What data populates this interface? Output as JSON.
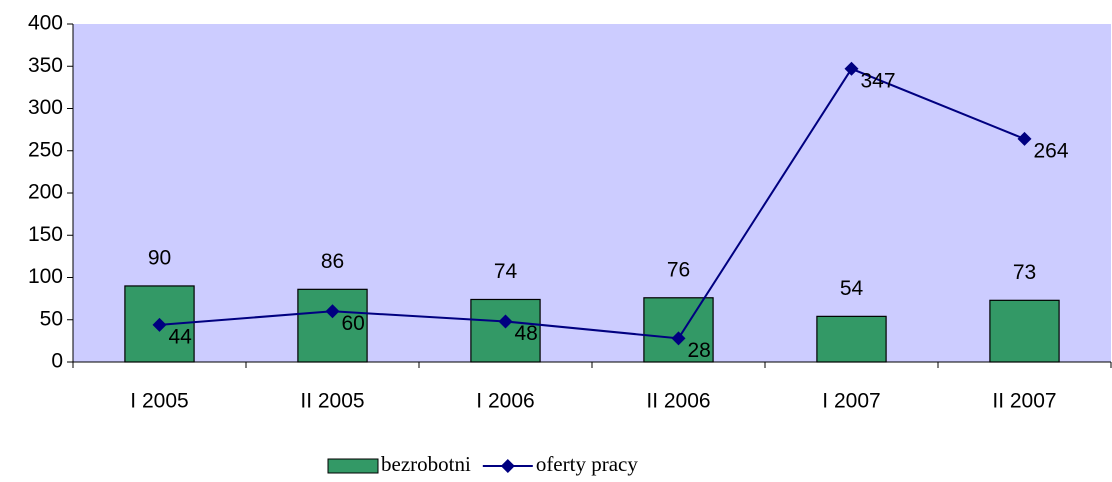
{
  "chart_data": {
    "type": "bar",
    "categories": [
      "I 2005",
      "II 2005",
      "I 2006",
      "II 2006",
      "I 2007",
      "II 2007"
    ],
    "series": [
      {
        "name": "bezrobotni",
        "type": "bar",
        "color": "#339966",
        "values": [
          90,
          86,
          74,
          76,
          54,
          73
        ]
      },
      {
        "name": "oferty pracy",
        "type": "line",
        "color": "#000080",
        "values": [
          44,
          60,
          48,
          28,
          347,
          264
        ]
      }
    ],
    "ylim": [
      0,
      400
    ],
    "yticks": [
      0,
      50,
      100,
      150,
      200,
      250,
      300,
      350,
      400
    ],
    "grid": false,
    "legend": "bottom",
    "plot_background": "#ccccff"
  }
}
